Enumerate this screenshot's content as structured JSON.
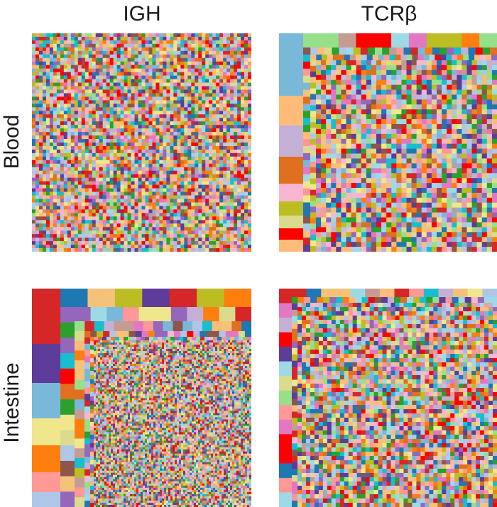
{
  "columns": [
    {
      "label": "IGH"
    },
    {
      "label": "TCRβ"
    }
  ],
  "rows": [
    {
      "label": "Blood"
    },
    {
      "label": "Intestine"
    }
  ],
  "panels": [
    {
      "id": "blood-igh",
      "row": "Blood",
      "column": "IGH",
      "layout": "uniform-fine"
    },
    {
      "id": "blood-tcrb",
      "row": "Blood",
      "column": "TCRβ",
      "layout": "large-border-then-fine"
    },
    {
      "id": "intestine-igh",
      "row": "Intestine",
      "column": "IGH",
      "layout": "nested-large-to-very-fine"
    },
    {
      "id": "intestine-tcrb",
      "row": "Intestine",
      "column": "TCRβ",
      "layout": "medium-border-then-fine"
    }
  ],
  "palette": [
    "#1f77b4",
    "#aec7e8",
    "#ff7f0e",
    "#ffbb78",
    "#2ca02c",
    "#98df8a",
    "#d62728",
    "#ff9896",
    "#9467bd",
    "#c5b0d5",
    "#8c564b",
    "#c49c94",
    "#e377c2",
    "#f7b6d2",
    "#dbdb8d",
    "#bcbd22",
    "#17becf",
    "#9edae5",
    "#f0e68c",
    "#e07020",
    "#5e3c99",
    "#ff0000",
    "#f5c27a",
    "#7ab8d9"
  ]
}
